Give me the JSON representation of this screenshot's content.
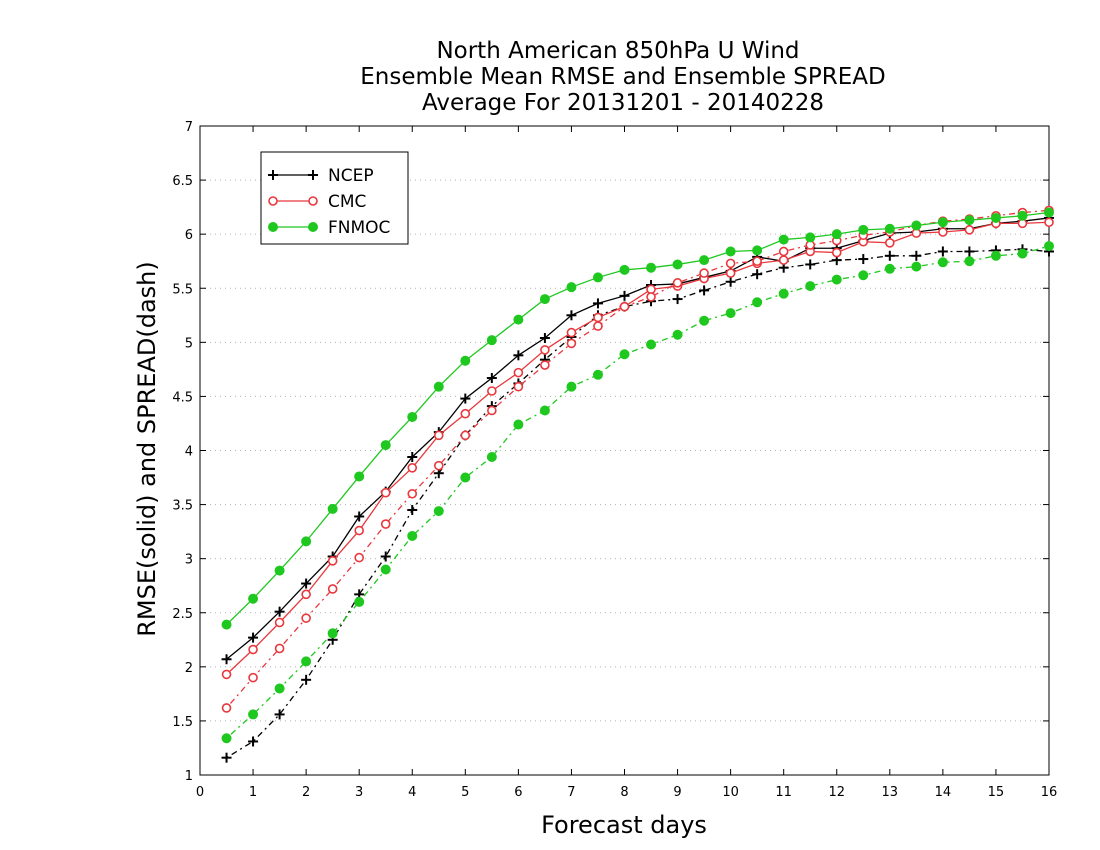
{
  "chart_data": {
    "type": "line",
    "title": [
      "North American 850hPa U Wind",
      "Ensemble Mean RMSE and Ensemble SPREAD",
      "Average For 20131201 - 20140228"
    ],
    "xlabel": "Forecast days",
    "ylabel": "RMSE(solid) and SPREAD(dash)",
    "xlim": [
      0,
      16
    ],
    "ylim": [
      1,
      7
    ],
    "x_ticks": [
      0,
      1,
      2,
      3,
      4,
      5,
      6,
      7,
      8,
      9,
      10,
      11,
      12,
      13,
      14,
      15,
      16
    ],
    "y_ticks": [
      1,
      1.5,
      2,
      2.5,
      3,
      3.5,
      4,
      4.5,
      5,
      5.5,
      6,
      6.5,
      7
    ],
    "y_tick_labels": [
      "1",
      "1.5",
      "2",
      "2.5",
      "3",
      "3.5",
      "4",
      "4.5",
      "5",
      "5.5",
      "6",
      "6.5",
      "7"
    ],
    "grid": "horizontal dotted",
    "legend_position": "top-left",
    "x": [
      0.5,
      1,
      1.5,
      2,
      2.5,
      3,
      3.5,
      4,
      4.5,
      5,
      5.5,
      6,
      6.5,
      7,
      7.5,
      8,
      8.5,
      9,
      9.5,
      10,
      10.5,
      11,
      11.5,
      12,
      12.5,
      13,
      13.5,
      14,
      14.5,
      15,
      15.5,
      16
    ],
    "series": [
      {
        "name": "NCEP",
        "metric": "RMSE",
        "line_style": "solid",
        "marker": "plus",
        "color": "#000000",
        "values": [
          2.07,
          2.27,
          2.51,
          2.77,
          3.02,
          3.39,
          3.62,
          3.94,
          4.17,
          4.48,
          4.67,
          4.88,
          5.04,
          5.25,
          5.36,
          5.43,
          5.53,
          5.54,
          5.6,
          5.66,
          5.79,
          5.75,
          5.87,
          5.87,
          5.94,
          6.01,
          6.02,
          6.05,
          6.05,
          6.1,
          6.12,
          6.15
        ]
      },
      {
        "name": "NCEP",
        "metric": "SPREAD",
        "line_style": "dash",
        "marker": "plus",
        "color": "#000000",
        "values": [
          1.16,
          1.31,
          1.56,
          1.88,
          2.25,
          2.67,
          3.02,
          3.45,
          3.79,
          4.14,
          4.41,
          4.62,
          4.84,
          5.05,
          5.25,
          5.33,
          5.38,
          5.4,
          5.48,
          5.56,
          5.63,
          5.69,
          5.72,
          5.76,
          5.77,
          5.8,
          5.8,
          5.84,
          5.84,
          5.85,
          5.86,
          5.84
        ]
      },
      {
        "name": "CMC",
        "metric": "RMSE",
        "line_style": "solid",
        "marker": "open-circle",
        "color": "#e8383d",
        "values": [
          1.93,
          2.16,
          2.41,
          2.67,
          2.98,
          3.26,
          3.61,
          3.84,
          4.14,
          4.34,
          4.55,
          4.72,
          4.93,
          5.09,
          5.23,
          5.33,
          5.49,
          5.52,
          5.59,
          5.64,
          5.73,
          5.76,
          5.84,
          5.83,
          5.93,
          5.92,
          6.01,
          6.02,
          6.04,
          6.1,
          6.1,
          6.11
        ]
      },
      {
        "name": "CMC",
        "metric": "SPREAD",
        "line_style": "dash",
        "marker": "open-circle",
        "color": "#e8383d",
        "values": [
          1.62,
          1.9,
          2.17,
          2.45,
          2.72,
          3.01,
          3.32,
          3.6,
          3.86,
          4.14,
          4.37,
          4.59,
          4.79,
          4.99,
          5.15,
          5.33,
          5.42,
          5.55,
          5.64,
          5.73,
          5.75,
          5.84,
          5.9,
          5.94,
          5.99,
          6.02,
          6.08,
          6.12,
          6.14,
          6.17,
          6.2,
          6.22
        ]
      },
      {
        "name": "FNMOC",
        "metric": "RMSE",
        "line_style": "solid",
        "marker": "filled-circle",
        "color": "#1ec81e",
        "values": [
          2.39,
          2.63,
          2.89,
          3.16,
          3.46,
          3.76,
          4.05,
          4.31,
          4.59,
          4.83,
          5.02,
          5.21,
          5.4,
          5.51,
          5.6,
          5.67,
          5.69,
          5.72,
          5.76,
          5.84,
          5.85,
          5.95,
          5.97,
          6.0,
          6.04,
          6.05,
          6.08,
          6.11,
          6.13,
          6.15,
          6.17,
          6.2
        ]
      },
      {
        "name": "FNMOC",
        "metric": "SPREAD",
        "line_style": "dash",
        "marker": "filled-circle",
        "color": "#1ec81e",
        "values": [
          1.34,
          1.56,
          1.8,
          2.05,
          2.31,
          2.6,
          2.9,
          3.21,
          3.44,
          3.75,
          3.94,
          4.24,
          4.37,
          4.59,
          4.7,
          4.89,
          4.98,
          5.07,
          5.2,
          5.27,
          5.37,
          5.45,
          5.52,
          5.58,
          5.62,
          5.68,
          5.7,
          5.74,
          5.75,
          5.8,
          5.82,
          5.89
        ]
      }
    ],
    "legend": [
      {
        "name": "NCEP",
        "marker": "plus",
        "color": "#000000"
      },
      {
        "name": "CMC",
        "marker": "open-circle",
        "color": "#e8383d"
      },
      {
        "name": "FNMOC",
        "marker": "filled-circle",
        "color": "#1ec81e"
      }
    ]
  }
}
